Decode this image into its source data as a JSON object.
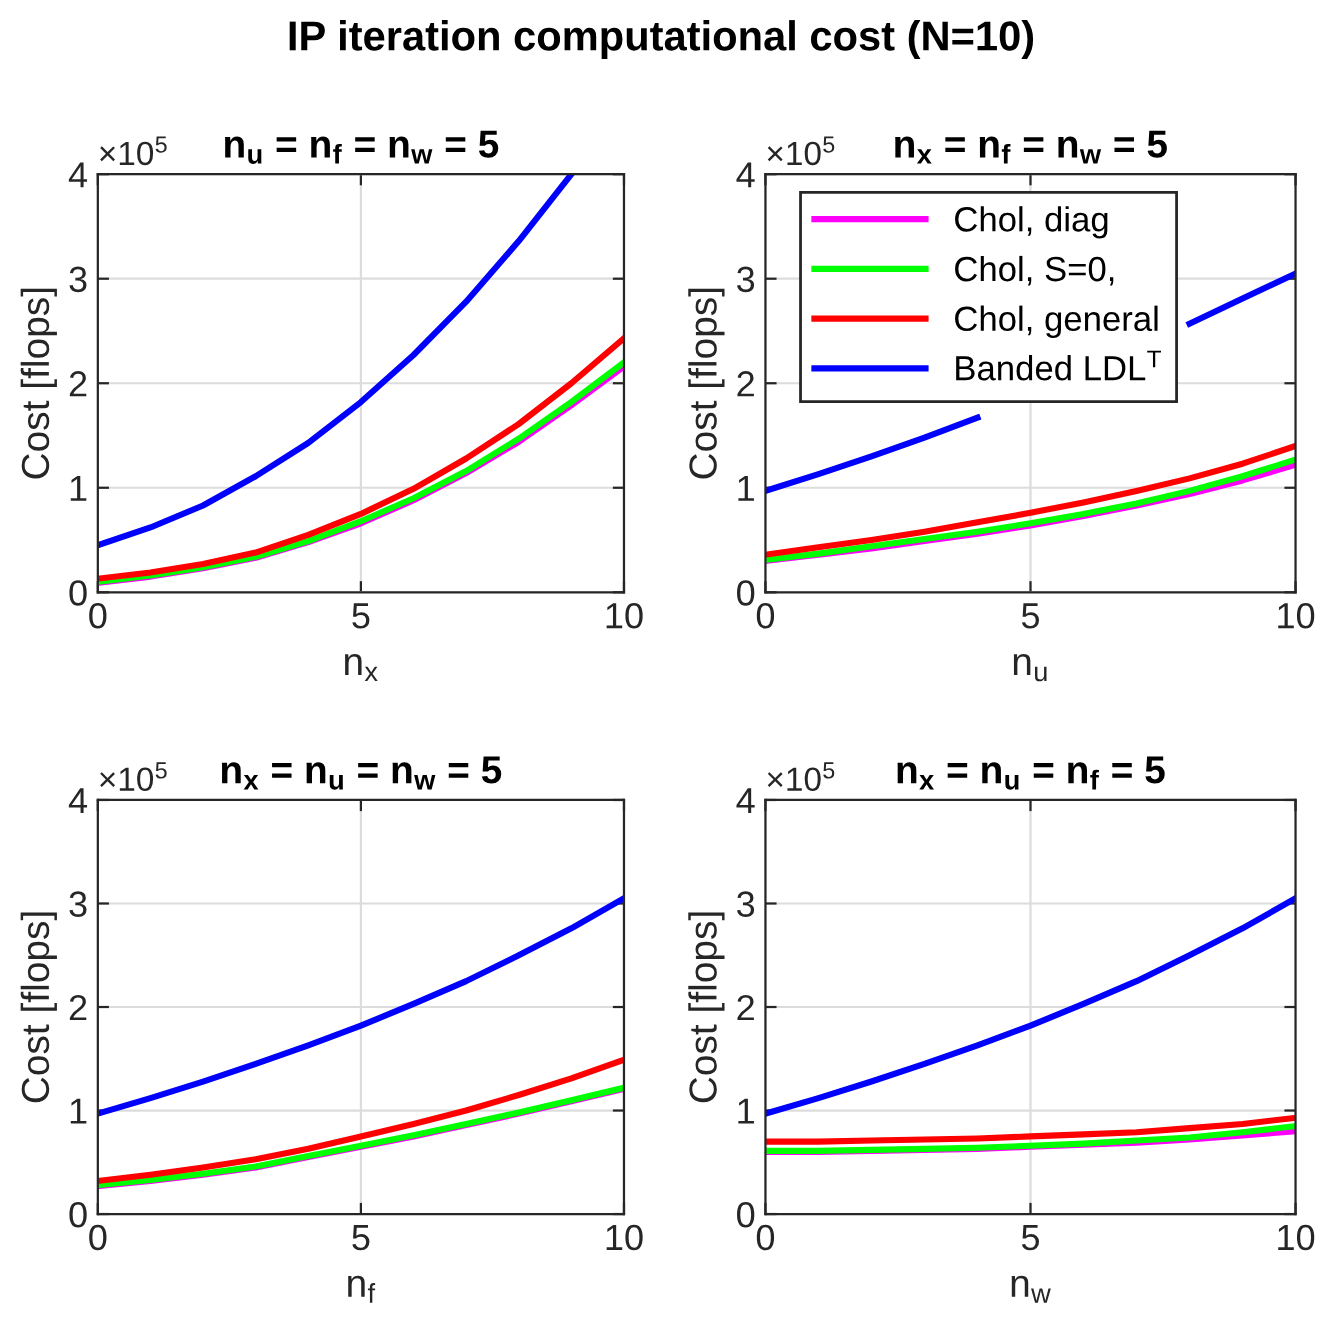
{
  "chart_data": [
    {
      "type": "line",
      "title": "n$_{u}$ = n$_{f}$ = n$_{w}$ = 5",
      "xlabel": "n$_{x}$",
      "ylabel": "Cost [flops]",
      "annotations": [
        "IP iteration computational cost (N=10)",
        "×10$^{5}$"
      ],
      "x": [
        0,
        1,
        2,
        3,
        4,
        5,
        6,
        7,
        8,
        9,
        10
      ],
      "xlim": [
        0,
        10
      ],
      "xticks": [
        0,
        5,
        10
      ],
      "ylim": [
        0,
        4
      ],
      "yticks": [
        0,
        1,
        2,
        3,
        4
      ],
      "grid": true,
      "legend": false,
      "series": [
        {
          "color": "#ff00ff",
          "values": [
            0.09,
            0.15,
            0.23,
            0.33,
            0.48,
            0.66,
            0.88,
            1.14,
            1.44,
            1.79,
            2.16
          ]
        },
        {
          "color": "#00ff00",
          "values": [
            0.1,
            0.16,
            0.24,
            0.34,
            0.49,
            0.68,
            0.9,
            1.16,
            1.47,
            1.82,
            2.2
          ]
        },
        {
          "color": "#ff0000",
          "values": [
            0.13,
            0.19,
            0.27,
            0.38,
            0.55,
            0.75,
            0.99,
            1.28,
            1.61,
            2.0,
            2.43
          ]
        },
        {
          "color": "#0000ff",
          "values": [
            0.45,
            0.62,
            0.83,
            1.11,
            1.43,
            1.82,
            2.27,
            2.78,
            3.36,
            4.0,
            null
          ]
        }
      ]
    },
    {
      "type": "line",
      "title": "n$_{x}$ = n$_{f}$ = n$_{w}$ = 5",
      "xlabel": "n$_{u}$",
      "ylabel": "Cost [flops]",
      "annotations": [
        "×10$^{5}$"
      ],
      "x": [
        0,
        1,
        2,
        3,
        4,
        5,
        6,
        7,
        8,
        9,
        10
      ],
      "xlim": [
        0,
        10
      ],
      "xticks": [
        0,
        5,
        10
      ],
      "ylim": [
        0,
        4
      ],
      "yticks": [
        0,
        1,
        2,
        3,
        4
      ],
      "grid": true,
      "legend": "top left",
      "series": [
        {
          "name": "Chol, diag",
          "color": "#ff00ff",
          "values": [
            0.3,
            0.36,
            0.42,
            0.49,
            0.56,
            0.64,
            0.73,
            0.83,
            0.94,
            1.07,
            1.22
          ]
        },
        {
          "name": "Chol, S=0,",
          "color": "#00ff00",
          "values": [
            0.31,
            0.37,
            0.44,
            0.51,
            0.58,
            0.66,
            0.75,
            0.85,
            0.97,
            1.11,
            1.27
          ]
        },
        {
          "name": "Chol, general",
          "color": "#ff0000",
          "values": [
            0.36,
            0.43,
            0.5,
            0.58,
            0.67,
            0.76,
            0.86,
            0.97,
            1.09,
            1.23,
            1.4
          ]
        },
        {
          "name": "Banded LDL$^{T}$",
          "color": "#0000ff",
          "values": [
            0.97,
            1.13,
            1.3,
            1.48,
            1.67,
            null,
            null,
            null,
            2.57,
            2.81,
            3.05
          ]
        }
      ]
    },
    {
      "type": "line",
      "title": "n$_{x}$ = n$_{u}$ = n$_{w}$ = 5",
      "xlabel": "n$_{f}$",
      "ylabel": "Cost [flops]",
      "annotations": [
        "×10$^{5}$"
      ],
      "x": [
        0,
        1,
        2,
        3,
        4,
        5,
        6,
        7,
        8,
        9,
        10
      ],
      "xlim": [
        0,
        10
      ],
      "xticks": [
        0,
        5,
        10
      ],
      "ylim": [
        0,
        4
      ],
      "yticks": [
        0,
        1,
        2,
        3,
        4
      ],
      "grid": true,
      "legend": false,
      "series": [
        {
          "color": "#ff00ff",
          "values": [
            0.27,
            0.32,
            0.38,
            0.45,
            0.55,
            0.65,
            0.75,
            0.86,
            0.97,
            1.09,
            1.21
          ]
        },
        {
          "color": "#00ff00",
          "values": [
            0.28,
            0.33,
            0.39,
            0.46,
            0.56,
            0.66,
            0.76,
            0.87,
            0.98,
            1.1,
            1.22
          ]
        },
        {
          "color": "#ff0000",
          "values": [
            0.32,
            0.38,
            0.45,
            0.53,
            0.63,
            0.75,
            0.87,
            1.0,
            1.15,
            1.31,
            1.49
          ]
        },
        {
          "color": "#0000ff",
          "values": [
            0.97,
            1.12,
            1.28,
            1.45,
            1.63,
            1.82,
            2.03,
            2.25,
            2.5,
            2.76,
            3.05
          ]
        }
      ]
    },
    {
      "type": "line",
      "title": "n$_{x}$ = n$_{u}$ = n$_{f}$ = 5",
      "xlabel": "n$_{w}$",
      "ylabel": "Cost [flops]",
      "annotations": [
        "×10$^{5}$"
      ],
      "x": [
        0,
        1,
        2,
        3,
        4,
        5,
        6,
        7,
        8,
        9,
        10
      ],
      "xlim": [
        0,
        10
      ],
      "xticks": [
        0,
        5,
        10
      ],
      "ylim": [
        0,
        4
      ],
      "yticks": [
        0,
        1,
        2,
        3,
        4
      ],
      "grid": true,
      "legend": false,
      "series": [
        {
          "color": "#ff00ff",
          "values": [
            0.6,
            0.6,
            0.61,
            0.62,
            0.63,
            0.65,
            0.67,
            0.69,
            0.72,
            0.76,
            0.8
          ]
        },
        {
          "color": "#00ff00",
          "values": [
            0.61,
            0.61,
            0.62,
            0.63,
            0.64,
            0.66,
            0.68,
            0.71,
            0.74,
            0.79,
            0.85
          ]
        },
        {
          "color": "#ff0000",
          "values": [
            0.7,
            0.7,
            0.71,
            0.72,
            0.73,
            0.75,
            0.77,
            0.79,
            0.83,
            0.87,
            0.93
          ]
        },
        {
          "color": "#0000ff",
          "values": [
            0.97,
            1.12,
            1.28,
            1.45,
            1.63,
            1.82,
            2.03,
            2.25,
            2.5,
            2.76,
            3.05
          ]
        }
      ]
    }
  ]
}
